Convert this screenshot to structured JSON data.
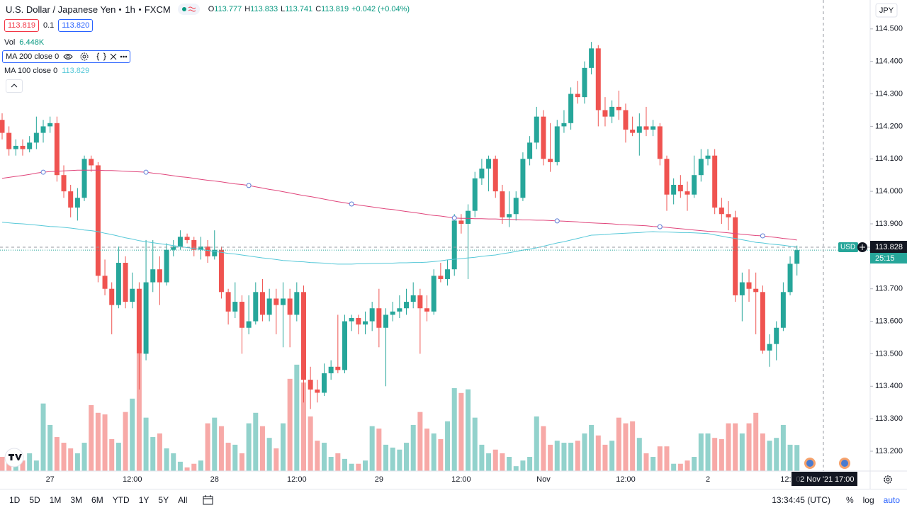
{
  "header": {
    "symbol": "U.S. Dollar / Japanese Yen",
    "interval": "1h",
    "source": "FXCM",
    "ohlc_letters": [
      "O",
      "H",
      "L",
      "C"
    ],
    "change": "+0.042 (+0.04%)",
    "bid": 113.819,
    "spread": 0.1,
    "ask": "113.820",
    "currency": "JPY"
  },
  "legend": {
    "vol": "Vol"
  },
  "chart_data": {
    "type": "candlestick",
    "up_color": "#26a69a",
    "down_color": "#ef5350",
    "grid": false,
    "ylim": [
      113.139,
      114.589
    ],
    "yticks": [
      {
        "value": 113.2,
        "label": "113.200"
      },
      {
        "value": 113.3,
        "label": "113.300"
      },
      {
        "value": 113.4,
        "label": "113.400"
      },
      {
        "value": 113.5,
        "label": "113.500"
      },
      {
        "value": 113.6,
        "label": "113.600"
      },
      {
        "value": 113.7,
        "label": "113.700"
      },
      {
        "value": 113.8,
        "label": "113.800"
      },
      {
        "value": 113.9,
        "label": "113.900"
      },
      {
        "value": 114.0,
        "label": "114.000"
      },
      {
        "value": 114.1,
        "label": "114.100"
      },
      {
        "value": 114.2,
        "label": "114.200"
      },
      {
        "value": 114.3,
        "label": "114.300"
      },
      {
        "value": 114.4,
        "label": "114.400"
      },
      {
        "value": 114.5,
        "label": "114.500"
      }
    ],
    "categories": [
      null,
      null,
      null,
      null,
      null,
      null,
      null,
      "27",
      null,
      null,
      null,
      null,
      null,
      null,
      null,
      null,
      null,
      null,
      null,
      "12:00",
      null,
      null,
      null,
      null,
      null,
      null,
      null,
      null,
      null,
      null,
      null,
      "28",
      null,
      null,
      null,
      null,
      null,
      null,
      null,
      null,
      null,
      null,
      null,
      "12:00",
      null,
      null,
      null,
      null,
      null,
      null,
      null,
      null,
      null,
      null,
      null,
      "29",
      null,
      null,
      null,
      null,
      null,
      null,
      null,
      null,
      null,
      null,
      null,
      "12:00",
      null,
      null,
      null,
      null,
      null,
      null,
      null,
      null,
      null,
      null,
      null,
      "Nov",
      null,
      null,
      null,
      null,
      null,
      null,
      null,
      null,
      null,
      null,
      null,
      "12:00",
      null,
      null,
      null,
      null,
      null,
      null,
      null,
      null,
      null,
      null,
      null,
      "2",
      null,
      null,
      null,
      null,
      null,
      null,
      null,
      null,
      null,
      null,
      null,
      "12:00",
      null
    ],
    "candles": [
      [
        114.22,
        114.24,
        114.16,
        114.18
      ],
      [
        114.18,
        114.2,
        114.11,
        114.13
      ],
      [
        114.13,
        114.16,
        114.11,
        114.14
      ],
      [
        114.14,
        114.16,
        114.11,
        114.13
      ],
      [
        114.13,
        114.17,
        114.12,
        114.15
      ],
      [
        114.15,
        114.23,
        114.13,
        114.18
      ],
      [
        114.18,
        114.22,
        114.15,
        114.2
      ],
      [
        114.2,
        114.23,
        114.18,
        114.21
      ],
      [
        114.21,
        114.23,
        114.03,
        114.05
      ],
      [
        114.05,
        114.08,
        113.98,
        114.0
      ],
      [
        114.0,
        114.02,
        113.92,
        113.95
      ],
      [
        113.95,
        114.01,
        113.91,
        113.98
      ],
      [
        113.98,
        114.11,
        113.97,
        114.1
      ],
      [
        114.1,
        114.11,
        114.06,
        114.08
      ],
      [
        114.08,
        114.09,
        113.72,
        113.74
      ],
      [
        113.74,
        113.79,
        113.68,
        113.7
      ],
      [
        113.7,
        113.72,
        113.56,
        113.65
      ],
      [
        113.65,
        113.83,
        113.64,
        113.78
      ],
      [
        113.78,
        113.8,
        113.64,
        113.66
      ],
      [
        113.66,
        113.75,
        113.64,
        113.7
      ],
      [
        113.7,
        113.72,
        113.39,
        113.5
      ],
      [
        113.5,
        113.85,
        113.48,
        113.72
      ],
      [
        113.72,
        113.85,
        113.69,
        113.76
      ],
      [
        113.76,
        113.8,
        113.65,
        113.72
      ],
      [
        113.72,
        113.84,
        113.71,
        113.82
      ],
      [
        113.82,
        113.85,
        113.8,
        113.83
      ],
      [
        113.83,
        113.88,
        113.82,
        113.86
      ],
      [
        113.86,
        113.87,
        113.84,
        113.85
      ],
      [
        113.85,
        113.86,
        113.8,
        113.82
      ],
      [
        113.82,
        113.86,
        113.79,
        113.83
      ],
      [
        113.83,
        113.85,
        113.78,
        113.8
      ],
      [
        113.8,
        113.88,
        113.79,
        113.82
      ],
      [
        113.82,
        113.83,
        113.67,
        113.69
      ],
      [
        113.69,
        113.7,
        113.59,
        113.63
      ],
      [
        113.63,
        113.72,
        113.61,
        113.66
      ],
      [
        113.66,
        113.68,
        113.5,
        113.58
      ],
      [
        113.58,
        113.68,
        113.56,
        113.6
      ],
      [
        113.6,
        113.72,
        113.59,
        113.69
      ],
      [
        113.69,
        113.73,
        113.6,
        113.62
      ],
      [
        113.62,
        113.7,
        113.6,
        113.67
      ],
      [
        113.67,
        113.7,
        113.56,
        113.65
      ],
      [
        113.65,
        113.72,
        113.52,
        113.67
      ],
      [
        113.67,
        113.7,
        113.52,
        113.62
      ],
      [
        113.62,
        113.72,
        113.6,
        113.69
      ],
      [
        113.69,
        113.71,
        113.35,
        113.42
      ],
      [
        113.42,
        113.46,
        113.33,
        113.39
      ],
      [
        113.39,
        113.42,
        113.35,
        113.38
      ],
      [
        113.38,
        113.47,
        113.37,
        113.44
      ],
      [
        113.44,
        113.48,
        113.42,
        113.46
      ],
      [
        113.46,
        113.62,
        113.44,
        113.45
      ],
      [
        113.45,
        113.62,
        113.44,
        113.6
      ],
      [
        113.6,
        113.62,
        113.57,
        113.61
      ],
      [
        113.61,
        113.62,
        113.56,
        113.59
      ],
      [
        113.59,
        113.63,
        113.56,
        113.6
      ],
      [
        113.6,
        113.66,
        113.57,
        113.64
      ],
      [
        113.64,
        113.7,
        113.52,
        113.58
      ],
      [
        113.58,
        113.64,
        113.4,
        113.62
      ],
      [
        113.62,
        113.66,
        113.6,
        113.63
      ],
      [
        113.63,
        113.68,
        113.61,
        113.64
      ],
      [
        113.64,
        113.7,
        113.62,
        113.66
      ],
      [
        113.66,
        113.72,
        113.64,
        113.68
      ],
      [
        113.68,
        113.7,
        113.5,
        113.64
      ],
      [
        113.64,
        113.68,
        113.6,
        113.63
      ],
      [
        113.63,
        113.76,
        113.62,
        113.74
      ],
      [
        113.74,
        113.78,
        113.72,
        113.73
      ],
      [
        113.73,
        113.79,
        113.71,
        113.76
      ],
      [
        113.76,
        113.93,
        113.74,
        113.91
      ],
      [
        113.91,
        113.93,
        113.87,
        113.9
      ],
      [
        113.9,
        113.96,
        113.73,
        113.94
      ],
      [
        113.94,
        114.06,
        113.92,
        114.04
      ],
      [
        114.04,
        114.1,
        114.02,
        114.07
      ],
      [
        114.07,
        114.11,
        114.0,
        114.1
      ],
      [
        114.1,
        114.11,
        113.98,
        114.0
      ],
      [
        114.0,
        114.02,
        113.9,
        113.92
      ],
      [
        113.92,
        114.0,
        113.89,
        113.93
      ],
      [
        113.93,
        114.0,
        113.91,
        113.98
      ],
      [
        113.98,
        114.12,
        113.97,
        114.1
      ],
      [
        114.1,
        114.17,
        114.08,
        114.15
      ],
      [
        114.15,
        114.26,
        114.13,
        114.23
      ],
      [
        114.23,
        114.25,
        114.08,
        114.1
      ],
      [
        114.1,
        114.21,
        114.06,
        114.09
      ],
      [
        114.09,
        114.22,
        114.08,
        114.2
      ],
      [
        114.2,
        114.25,
        114.18,
        114.21
      ],
      [
        114.21,
        114.32,
        114.19,
        114.3
      ],
      [
        114.3,
        114.34,
        114.27,
        114.29
      ],
      [
        114.29,
        114.4,
        114.27,
        114.38
      ],
      [
        114.38,
        114.46,
        114.36,
        114.44
      ],
      [
        114.44,
        114.45,
        114.2,
        114.25
      ],
      [
        114.25,
        114.29,
        114.2,
        114.23
      ],
      [
        114.23,
        114.28,
        114.21,
        114.26
      ],
      [
        114.26,
        114.31,
        114.22,
        114.25
      ],
      [
        114.25,
        114.27,
        114.15,
        114.19
      ],
      [
        114.19,
        114.23,
        114.17,
        114.18
      ],
      [
        114.18,
        114.24,
        114.11,
        114.2
      ],
      [
        114.2,
        114.26,
        114.17,
        114.19
      ],
      [
        114.19,
        114.22,
        114.17,
        114.2
      ],
      [
        114.2,
        114.21,
        114.08,
        114.1
      ],
      [
        114.1,
        114.11,
        113.94,
        113.99
      ],
      [
        113.99,
        114.04,
        113.96,
        114.02
      ],
      [
        114.02,
        114.05,
        113.98,
        114.0
      ],
      [
        114.0,
        114.03,
        113.94,
        113.99
      ],
      [
        113.99,
        114.11,
        113.98,
        114.05
      ],
      [
        114.05,
        114.13,
        114.03,
        114.1
      ],
      [
        114.1,
        114.13,
        114.08,
        114.11
      ],
      [
        114.11,
        114.13,
        113.93,
        113.95
      ],
      [
        113.95,
        113.98,
        113.9,
        113.93
      ],
      [
        113.93,
        113.97,
        113.88,
        113.92
      ],
      [
        113.92,
        113.94,
        113.66,
        113.68
      ],
      [
        113.68,
        113.75,
        113.6,
        113.72
      ],
      [
        113.72,
        113.76,
        113.66,
        113.7
      ],
      [
        113.7,
        113.75,
        113.56,
        113.69
      ],
      [
        113.69,
        113.71,
        113.5,
        113.51
      ],
      [
        113.51,
        113.56,
        113.46,
        113.53
      ],
      [
        113.53,
        113.6,
        113.48,
        113.58
      ],
      [
        113.58,
        113.72,
        113.57,
        113.69
      ],
      [
        113.69,
        113.8,
        113.68,
        113.777
      ],
      [
        113.777,
        113.833,
        113.741,
        113.819
      ]
    ],
    "volume": {
      "values": [
        3500,
        4400,
        3000,
        2600,
        4400,
        2600,
        16700,
        11400,
        8400,
        7000,
        5600,
        4400,
        7000,
        16300,
        14400,
        14000,
        7900,
        7000,
        14600,
        17900,
        28900,
        13200,
        8400,
        9300,
        5600,
        4400,
        2300,
        900,
        1800,
        2600,
        11800,
        13200,
        11100,
        7000,
        6500,
        4400,
        11800,
        14400,
        11100,
        8200,
        5600,
        11800,
        22800,
        26300,
        21900,
        13500,
        7500,
        7000,
        3500,
        4400,
        3000,
        1800,
        1800,
        2600,
        11100,
        10500,
        6500,
        5800,
        5300,
        7000,
        11400,
        14600,
        10500,
        9300,
        7900,
        12300,
        20500,
        19300,
        20200,
        13200,
        6500,
        4400,
        5300,
        4400,
        3500,
        1200,
        2600,
        3500,
        13500,
        11100,
        6500,
        7500,
        7000,
        7000,
        7500,
        9300,
        11400,
        8800,
        6500,
        7500,
        13200,
        11800,
        12300,
        8200,
        4400,
        3500,
        6100,
        6100,
        1800,
        1800,
        2600,
        3500,
        9300,
        9300,
        8200,
        7900,
        11800,
        11800,
        9300,
        11800,
        14400,
        9300,
        7500,
        8200,
        11400,
        6500,
        6448
      ],
      "last_label": "6.448K"
    },
    "series": [
      {
        "name": "MA 200 close 0",
        "color": "#e0457b",
        "values": [
          114.04,
          114.043,
          114.046,
          114.049,
          114.052,
          114.056,
          114.059,
          114.061,
          114.062,
          114.063,
          114.064,
          114.065,
          114.065,
          114.065,
          114.065,
          114.064,
          114.064,
          114.063,
          114.062,
          114.061,
          114.06,
          114.059,
          114.056,
          114.054,
          114.051,
          114.048,
          114.045,
          114.043,
          114.04,
          114.037,
          114.034,
          114.032,
          114.029,
          114.026,
          114.023,
          114.021,
          114.018,
          114.014,
          114.01,
          114.006,
          114.003,
          113.999,
          113.995,
          113.991,
          113.987,
          113.984,
          113.98,
          113.976,
          113.972,
          113.968,
          113.965,
          113.961,
          113.958,
          113.955,
          113.952,
          113.949,
          113.946,
          113.944,
          113.941,
          113.938,
          113.935,
          113.932,
          113.929,
          113.926,
          113.924,
          113.921,
          113.918,
          113.917,
          113.917,
          113.916,
          113.916,
          113.915,
          113.915,
          113.914,
          113.914,
          113.913,
          113.912,
          113.912,
          113.911,
          113.911,
          113.91,
          113.909,
          113.908,
          113.907,
          113.906,
          113.904,
          113.903,
          113.902,
          113.901,
          113.9,
          113.898,
          113.897,
          113.896,
          113.895,
          113.894,
          113.892,
          113.891,
          113.889,
          113.887,
          113.885,
          113.883,
          113.881,
          113.879,
          113.877,
          113.876,
          113.874,
          113.872,
          113.87,
          113.868,
          113.866,
          113.864,
          113.863,
          113.86,
          113.858,
          113.855,
          113.853,
          113.85
        ]
      },
      {
        "name": "MA 100 close 0",
        "color": "#56c8d8",
        "values": [
          113.905,
          113.903,
          113.901,
          113.9,
          113.898,
          113.896,
          113.894,
          113.892,
          113.891,
          113.889,
          113.887,
          113.884,
          113.881,
          113.879,
          113.876,
          113.871,
          113.867,
          113.862,
          113.857,
          113.853,
          113.848,
          113.845,
          113.842,
          113.839,
          113.836,
          113.833,
          113.83,
          113.827,
          113.824,
          113.821,
          113.818,
          113.815,
          113.812,
          113.809,
          113.807,
          113.804,
          113.801,
          113.798,
          113.795,
          113.793,
          113.79,
          113.787,
          113.786,
          113.784,
          113.783,
          113.781,
          113.78,
          113.779,
          113.777,
          113.776,
          113.776,
          113.776,
          113.777,
          113.777,
          113.778,
          113.778,
          113.779,
          113.779,
          113.78,
          113.78,
          113.781,
          113.781,
          113.782,
          113.784,
          113.786,
          113.789,
          113.791,
          113.793,
          113.795,
          113.797,
          113.8,
          113.802,
          113.804,
          113.808,
          113.811,
          113.815,
          113.819,
          113.822,
          113.826,
          113.831,
          113.836,
          113.841,
          113.845,
          113.85,
          113.855,
          113.86,
          113.865,
          113.866,
          113.867,
          113.869,
          113.87,
          113.871,
          113.872,
          113.873,
          113.875,
          113.876,
          113.875,
          113.875,
          113.874,
          113.873,
          113.873,
          113.872,
          113.871,
          113.87,
          113.866,
          113.862,
          113.858,
          113.855,
          113.851,
          113.847,
          113.843,
          113.841,
          113.838,
          113.836,
          113.834,
          113.831,
          113.829
        ]
      }
    ],
    "crosshair": {
      "price": 113.828,
      "tag": "USD",
      "countdown": "25:15",
      "date": "02 Nov '21",
      "time": "17:00"
    }
  },
  "toolbar": {
    "ranges": [
      "1D",
      "5D",
      "1M",
      "3M",
      "6M",
      "YTD",
      "1Y",
      "5Y",
      "All"
    ],
    "clock": "13:34:45 (UTC)",
    "percent": "%",
    "log": "log",
    "auto": "auto"
  }
}
